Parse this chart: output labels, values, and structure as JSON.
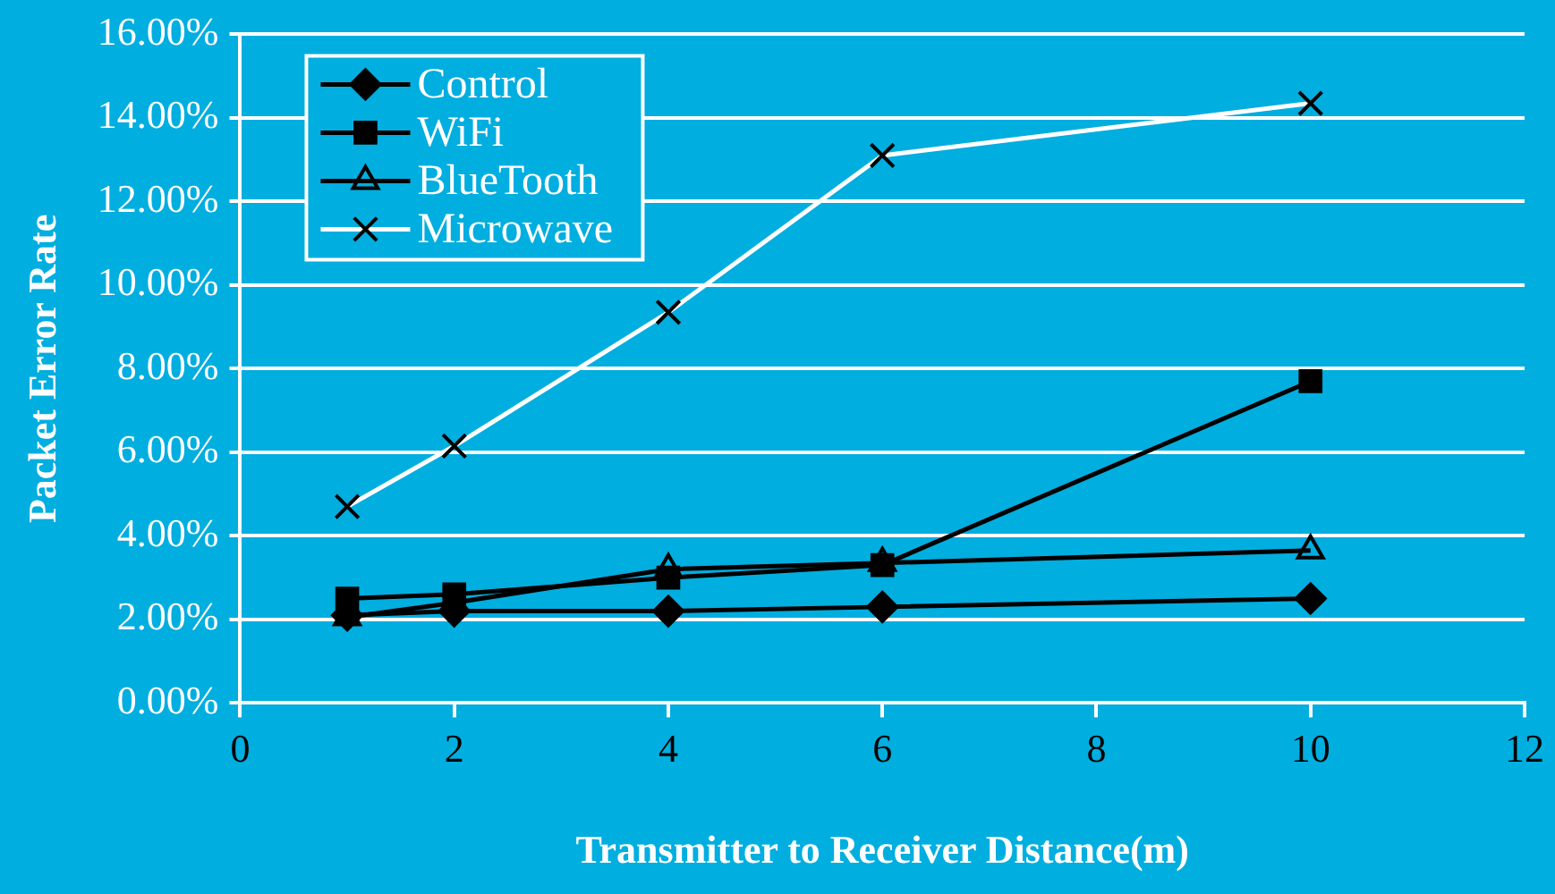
{
  "chart_data": {
    "type": "line",
    "xlabel": "Transmitter to Receiver Distance(m)",
    "ylabel": "Packet Error Rate",
    "x": [
      1,
      2,
      4,
      6,
      10
    ],
    "series": [
      {
        "name": "Control",
        "color": "#000000",
        "marker": "diamond",
        "values": [
          2.1,
          2.2,
          2.2,
          2.3,
          2.5
        ]
      },
      {
        "name": "WiFi",
        "color": "#000000",
        "marker": "square",
        "values": [
          2.5,
          2.6,
          3.0,
          3.3,
          7.7
        ]
      },
      {
        "name": "BlueTooth",
        "color": "#000000",
        "marker": "triangle",
        "values": [
          2.05,
          2.4,
          3.2,
          3.35,
          3.65
        ]
      },
      {
        "name": "Microwave",
        "color": "#ffffff",
        "marker": "cross",
        "values": [
          4.7,
          6.15,
          9.35,
          13.1,
          14.35
        ]
      }
    ],
    "xlim": [
      0,
      12
    ],
    "xticks": [
      0,
      2,
      4,
      6,
      8,
      10,
      12
    ],
    "ylim": [
      0,
      16
    ],
    "yticks": [
      {
        "value": 0,
        "label": "0.00%"
      },
      {
        "value": 2,
        "label": "2.00%"
      },
      {
        "value": 4,
        "label": "4.00%"
      },
      {
        "value": 6,
        "label": "6.00%"
      },
      {
        "value": 8,
        "label": "8.00%"
      },
      {
        "value": 10,
        "label": "10.00%"
      },
      {
        "value": 12,
        "label": "12.00%"
      },
      {
        "value": 14,
        "label": "14.00%"
      },
      {
        "value": 16,
        "label": "16.00%"
      }
    ],
    "grid": "y",
    "legend": "top left"
  }
}
